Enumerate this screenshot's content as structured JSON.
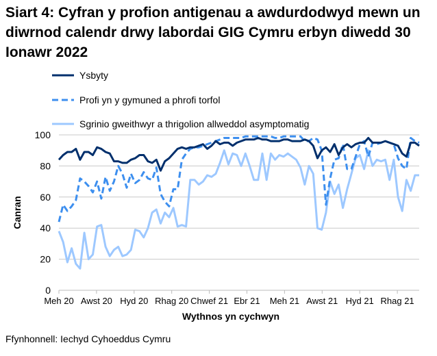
{
  "chart_data": {
    "type": "line",
    "title": "Siart 4: Cyfran y profion antigenau a awdurdodwyd mewn un diwrnod calendr drwy labordai GIG Cymru erbyn diwedd 30 Ionawr 2022",
    "xlabel": "Wythnos yn cychwyn",
    "ylabel": "Canran",
    "ylim": [
      0,
      100
    ],
    "yticks": [
      0,
      20,
      40,
      60,
      80,
      100
    ],
    "xtick_labels": [
      "Meh 20",
      "Awst 20",
      "Hyd 20",
      "Rhag 20",
      "Chwef 21",
      "Ebr 21",
      "Meh 21",
      "Awst 21",
      "Hyd 21",
      "Rhag 21"
    ],
    "grid": "horizontal",
    "legend_position": "top",
    "series": [
      {
        "name": "Ysbyty",
        "color": "#002F6C",
        "style": "solid",
        "values": [
          84,
          87,
          89,
          89,
          91,
          84,
          89,
          89,
          87,
          92,
          91,
          89,
          88,
          83,
          83,
          82,
          82,
          84,
          85,
          87,
          87,
          83,
          82,
          84,
          77,
          83,
          85,
          88,
          91,
          92,
          91,
          92,
          92,
          93,
          94,
          91,
          93,
          96,
          94,
          95,
          95,
          93,
          95,
          96,
          97,
          97,
          97,
          98,
          97,
          97,
          96,
          96,
          96,
          97,
          97,
          96,
          96,
          96,
          97,
          96,
          93,
          85,
          90,
          92,
          89,
          94,
          87,
          92,
          94,
          92,
          94,
          95,
          95,
          98,
          95,
          95,
          95,
          96,
          95,
          94,
          93,
          88,
          86,
          95,
          95,
          93
        ]
      },
      {
        "name": "Profi yn y gymuned a phrofi torfol",
        "color": "#3D8FEF",
        "style": "dashed",
        "values": [
          44,
          55,
          51,
          54,
          58,
          72,
          70,
          67,
          63,
          70,
          59,
          73,
          64,
          70,
          80,
          75,
          66,
          75,
          69,
          71,
          76,
          72,
          71,
          79,
          62,
          57,
          54,
          65,
          65,
          84,
          88,
          91,
          92,
          92,
          93,
          94,
          95,
          96,
          97,
          98,
          98,
          98,
          98,
          98,
          99,
          99,
          99,
          99,
          99,
          99,
          99,
          98,
          98,
          99,
          99,
          99,
          99,
          99,
          96,
          96,
          98,
          97,
          90,
          55,
          72,
          84,
          85,
          94,
          78,
          78,
          86,
          94,
          96,
          86,
          95,
          94,
          95,
          96,
          95,
          94,
          85,
          80,
          78,
          98,
          96,
          95
        ]
      },
      {
        "name": "Sgrinio gweithwyr a thrigolion allweddol asymptomatig",
        "color": "#9DC8FF",
        "style": "solid",
        "values": [
          38,
          31,
          18,
          27,
          17,
          14,
          37,
          20,
          23,
          41,
          42,
          28,
          22,
          26,
          28,
          22,
          23,
          26,
          39,
          38,
          34,
          40,
          50,
          52,
          43,
          50,
          47,
          53,
          41,
          42,
          41,
          71,
          71,
          68,
          70,
          74,
          73,
          75,
          82,
          90,
          81,
          88,
          87,
          80,
          88,
          80,
          71,
          71,
          88,
          71,
          88,
          84,
          87,
          86,
          88,
          86,
          84,
          79,
          68,
          80,
          75,
          40,
          39,
          50,
          70,
          62,
          68,
          53,
          65,
          75,
          85,
          87,
          78,
          90,
          80,
          84,
          83,
          84,
          71,
          84,
          60,
          51,
          71,
          64,
          74,
          74
        ]
      }
    ]
  },
  "source": "Ffynhonnell: Iechyd Cyhoeddus Cymru"
}
